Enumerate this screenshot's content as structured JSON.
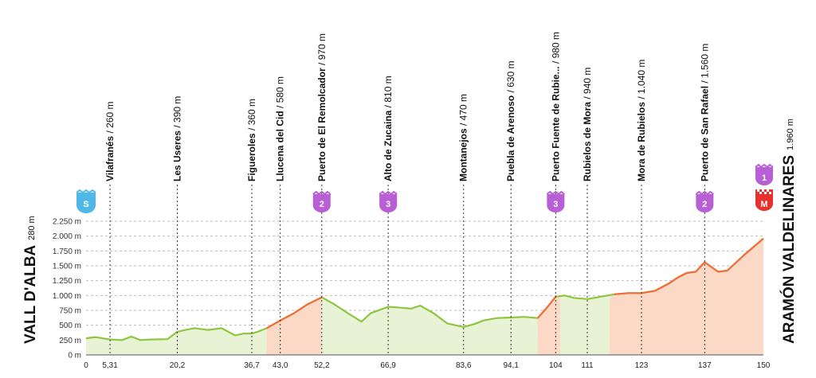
{
  "start": {
    "name": "VALL D'ALBA",
    "altitude": "280 m"
  },
  "finish": {
    "name": "ARAMÓN VALDELINARES",
    "altitude": "1.960 m"
  },
  "colors": {
    "profile_line": "#8fc63f",
    "profile_fill": "#e8f3d6",
    "steep_line": "#f26c3b",
    "steep_fill": "#fbd9c6",
    "grid": "#bdbdbd",
    "cat_badge": "#b85fd6",
    "start_badge": "#4fb8e6",
    "finish_badge": "#e8302c"
  },
  "badges": {
    "start": "S",
    "finish_goal": "M"
  },
  "chart_data": {
    "type": "area",
    "title": "",
    "xlabel": "",
    "ylabel": "",
    "xlim": [
      0,
      150
    ],
    "ylim": [
      0,
      2250
    ],
    "y_ticks": [
      "0 m",
      "250 m",
      "500 m",
      "750 m",
      "1.000 m",
      "1.250 m",
      "1.500 m",
      "1.750 m",
      "2.000 m",
      "2.250 m"
    ],
    "y_tick_values": [
      0,
      250,
      500,
      750,
      1000,
      1250,
      1500,
      1750,
      2000,
      2250
    ],
    "x_ticks": [
      "0",
      "5,31",
      "20,2",
      "36,7",
      "43,0",
      "52,2",
      "66,9",
      "83,6",
      "94,1",
      "104",
      "111",
      "123",
      "137",
      "150"
    ],
    "x_tick_values": [
      0,
      5.31,
      20.2,
      36.7,
      43.0,
      52.2,
      66.9,
      83.6,
      94.1,
      104,
      111,
      123,
      137,
      150
    ],
    "grid": true,
    "profile": {
      "x": [
        0,
        2,
        5.31,
        8,
        10,
        12,
        14,
        18,
        20.2,
        22,
        24,
        27,
        30,
        33,
        35,
        36.7,
        38,
        40,
        43,
        46,
        49,
        52.2,
        55,
        58,
        61,
        63,
        66.9,
        69,
        72,
        74,
        77,
        80,
        83.6,
        86,
        88,
        91,
        94.1,
        97,
        100,
        102,
        104,
        106,
        108,
        111,
        114,
        117,
        120,
        123,
        126,
        129,
        131,
        133,
        135,
        137,
        140,
        142,
        144,
        146,
        148,
        150
      ],
      "y": [
        280,
        300,
        260,
        250,
        310,
        250,
        260,
        265,
        390,
        420,
        450,
        420,
        450,
        330,
        360,
        360,
        390,
        450,
        580,
        700,
        850,
        970,
        850,
        700,
        560,
        700,
        810,
        800,
        780,
        830,
        700,
        530,
        470,
        520,
        580,
        620,
        630,
        640,
        620,
        790,
        980,
        1000,
        960,
        940,
        980,
        1020,
        1040,
        1040,
        1080,
        1200,
        1300,
        1380,
        1400,
        1560,
        1400,
        1420,
        1560,
        1700,
        1830,
        1960
      ]
    },
    "climbs": [
      [
        40,
        52.2
      ],
      [
        100,
        105
      ],
      [
        116,
        150
      ]
    ],
    "waypoints": [
      {
        "km": 5.31,
        "name": "Vilafranés",
        "alt": "260 m",
        "badge": ""
      },
      {
        "km": 20.2,
        "name": "Les Useres",
        "alt": "390 m",
        "badge": ""
      },
      {
        "km": 36.7,
        "name": "Figueroles",
        "alt": "360 m",
        "badge": ""
      },
      {
        "km": 43.0,
        "name": "Llucena del Cid",
        "alt": "580 m",
        "badge": ""
      },
      {
        "km": 52.2,
        "name": "Puerto de El Remolcador",
        "alt": "970 m",
        "badge": "2"
      },
      {
        "km": 66.9,
        "name": "Alto de Zucaina",
        "alt": "810 m",
        "badge": "3"
      },
      {
        "km": 83.6,
        "name": "Montanejos",
        "alt": "470 m",
        "badge": ""
      },
      {
        "km": 94.1,
        "name": "Puebla de Arenoso",
        "alt": "630 m",
        "badge": ""
      },
      {
        "km": 104,
        "name": "Puerto Fuente de Rubie...",
        "alt": "980 m",
        "badge": "3"
      },
      {
        "km": 111,
        "name": "Rubielos de Mora",
        "alt": "940 m",
        "badge": ""
      },
      {
        "km": 123,
        "name": "Mora de Rubielos",
        "alt": "1.040 m",
        "badge": ""
      },
      {
        "km": 137,
        "name": "Puerto de San Rafael",
        "alt": "1.560 m",
        "badge": "2"
      }
    ],
    "finish_cat": "1"
  }
}
